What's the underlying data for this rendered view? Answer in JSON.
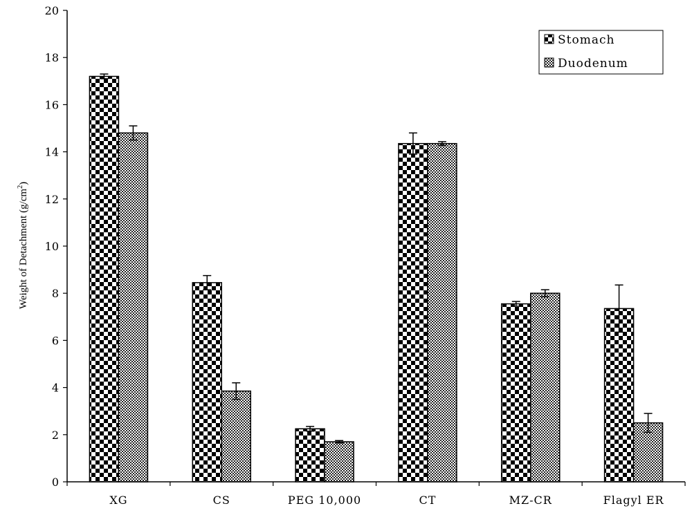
{
  "chart_data": {
    "type": "bar",
    "title": "",
    "xlabel": "",
    "ylabel": "Weight of Detachment (g/cm",
    "ylabel_superscript": "2",
    "ylabel_close": ")",
    "ylim": [
      0,
      20
    ],
    "yticks": [
      "0",
      "2",
      "4",
      "6",
      "8",
      "10",
      "12",
      "14",
      "16",
      "18",
      "20"
    ],
    "categories": [
      "XG",
      "CS",
      "PEG 10,000",
      "CT",
      "MZ-CR",
      "Flagyl ER"
    ],
    "series": [
      {
        "name": "Stomach",
        "pattern": "checker",
        "values": [
          17.2,
          8.45,
          2.25,
          14.35,
          7.55,
          7.35
        ],
        "errors": [
          0.1,
          0.3,
          0.1,
          0.45,
          0.1,
          1.0
        ]
      },
      {
        "name": "Duodenum",
        "pattern": "crosshatch",
        "values": [
          14.8,
          3.85,
          1.7,
          14.35,
          8.0,
          2.5
        ],
        "errors": [
          0.3,
          0.35,
          0.05,
          0.08,
          0.15,
          0.4
        ]
      }
    ],
    "grid": false,
    "legend_position": "top-right",
    "colors": {
      "stroke": "#000000",
      "background": "#ffffff"
    }
  }
}
